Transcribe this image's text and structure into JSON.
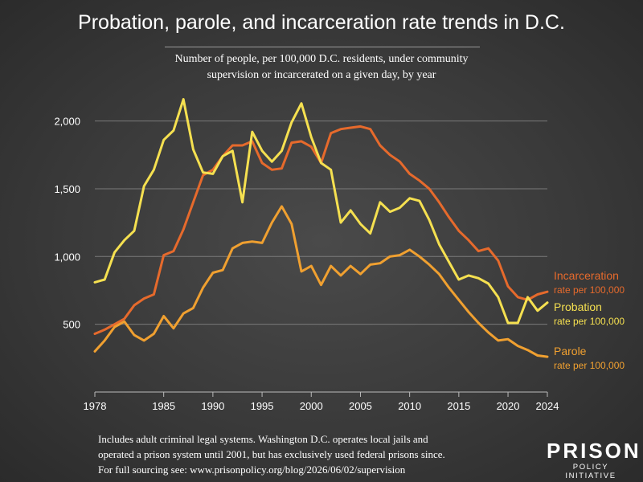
{
  "header": {
    "title": "Probation, parole, and incarceration rate trends in D.C.",
    "subtitle_line1": "Number of people, per 100,000 D.C. residents, under community",
    "subtitle_line2": "supervision or incarcerated on a given day, by year"
  },
  "footnote": {
    "line1": "Includes adult criminal legal systems. Washington D.C. operates local jails and",
    "line2": "operated a prison system until 2001, but has exclusively used federal prisons since.",
    "line3": "For full sourcing see: www.prisonpolicy.org/blog/2026/06/02/supervision"
  },
  "logo": {
    "line1": "PRISON",
    "line2": "POLICY INITIATIVE"
  },
  "chart_data": {
    "type": "line",
    "title": "Probation, parole, and incarceration rate trends in D.C.",
    "subtitle": "Number of people, per 100,000 D.C. residents, under community supervision or incarcerated on a given day, by year",
    "xlabel": "",
    "ylabel": "",
    "xlim": [
      1978,
      2024
    ],
    "ylim": [
      0,
      2300
    ],
    "x_ticks": [
      "1978",
      "1985",
      "1990",
      "1995",
      "2000",
      "2005",
      "2010",
      "2015",
      "2020",
      "2024"
    ],
    "y_ticks": [
      "500",
      "1,000",
      "1,500",
      "2,000"
    ],
    "y_tick_values": [
      500,
      1000,
      1500,
      2000
    ],
    "x_tick_values": [
      1978,
      1985,
      1990,
      1995,
      2000,
      2005,
      2010,
      2015,
      2020,
      2024
    ],
    "grid": "horizontal",
    "legend": "right-side labels",
    "x": [
      1978,
      1979,
      1980,
      1981,
      1982,
      1983,
      1984,
      1985,
      1986,
      1987,
      1988,
      1989,
      1990,
      1991,
      1992,
      1993,
      1994,
      1995,
      1996,
      1997,
      1998,
      1999,
      2000,
      2001,
      2002,
      2003,
      2004,
      2005,
      2006,
      2007,
      2008,
      2009,
      2010,
      2011,
      2012,
      2013,
      2014,
      2015,
      2016,
      2017,
      2018,
      2019,
      2020,
      2021,
      2022,
      2023,
      2024
    ],
    "series": [
      {
        "name": "Incarceration",
        "sublabel": "rate per 100,000",
        "color": "#e66a2c",
        "values": [
          430,
          460,
          500,
          540,
          640,
          690,
          720,
          1010,
          1040,
          1200,
          1400,
          1600,
          1640,
          1740,
          1820,
          1820,
          1850,
          1690,
          1640,
          1650,
          1840,
          1850,
          1810,
          1690,
          1910,
          1940,
          1950,
          1960,
          1940,
          1820,
          1750,
          1700,
          1610,
          1560,
          1500,
          1400,
          1290,
          1190,
          1120,
          1040,
          1060,
          970,
          780,
          700,
          680,
          720,
          740
        ]
      },
      {
        "name": "Probation",
        "sublabel": "rate per 100,000",
        "color": "#f5e050",
        "values": [
          810,
          830,
          1030,
          1120,
          1190,
          1520,
          1640,
          1860,
          1930,
          2160,
          1790,
          1620,
          1610,
          1740,
          1780,
          1400,
          1920,
          1780,
          1700,
          1780,
          1990,
          2130,
          1880,
          1690,
          1640,
          1250,
          1340,
          1240,
          1170,
          1400,
          1330,
          1360,
          1430,
          1410,
          1270,
          1090,
          960,
          830,
          860,
          840,
          800,
          700,
          510,
          510,
          700,
          600,
          660
        ]
      },
      {
        "name": "Parole",
        "sublabel": "rate per 100,000",
        "color": "#f0a030",
        "values": [
          300,
          380,
          480,
          520,
          420,
          380,
          430,
          560,
          470,
          580,
          620,
          770,
          880,
          900,
          1060,
          1100,
          1110,
          1100,
          1250,
          1370,
          1240,
          890,
          930,
          790,
          930,
          860,
          930,
          870,
          940,
          950,
          1000,
          1010,
          1050,
          1000,
          940,
          870,
          770,
          680,
          590,
          510,
          440,
          380,
          390,
          340,
          310,
          270,
          260
        ]
      }
    ]
  }
}
